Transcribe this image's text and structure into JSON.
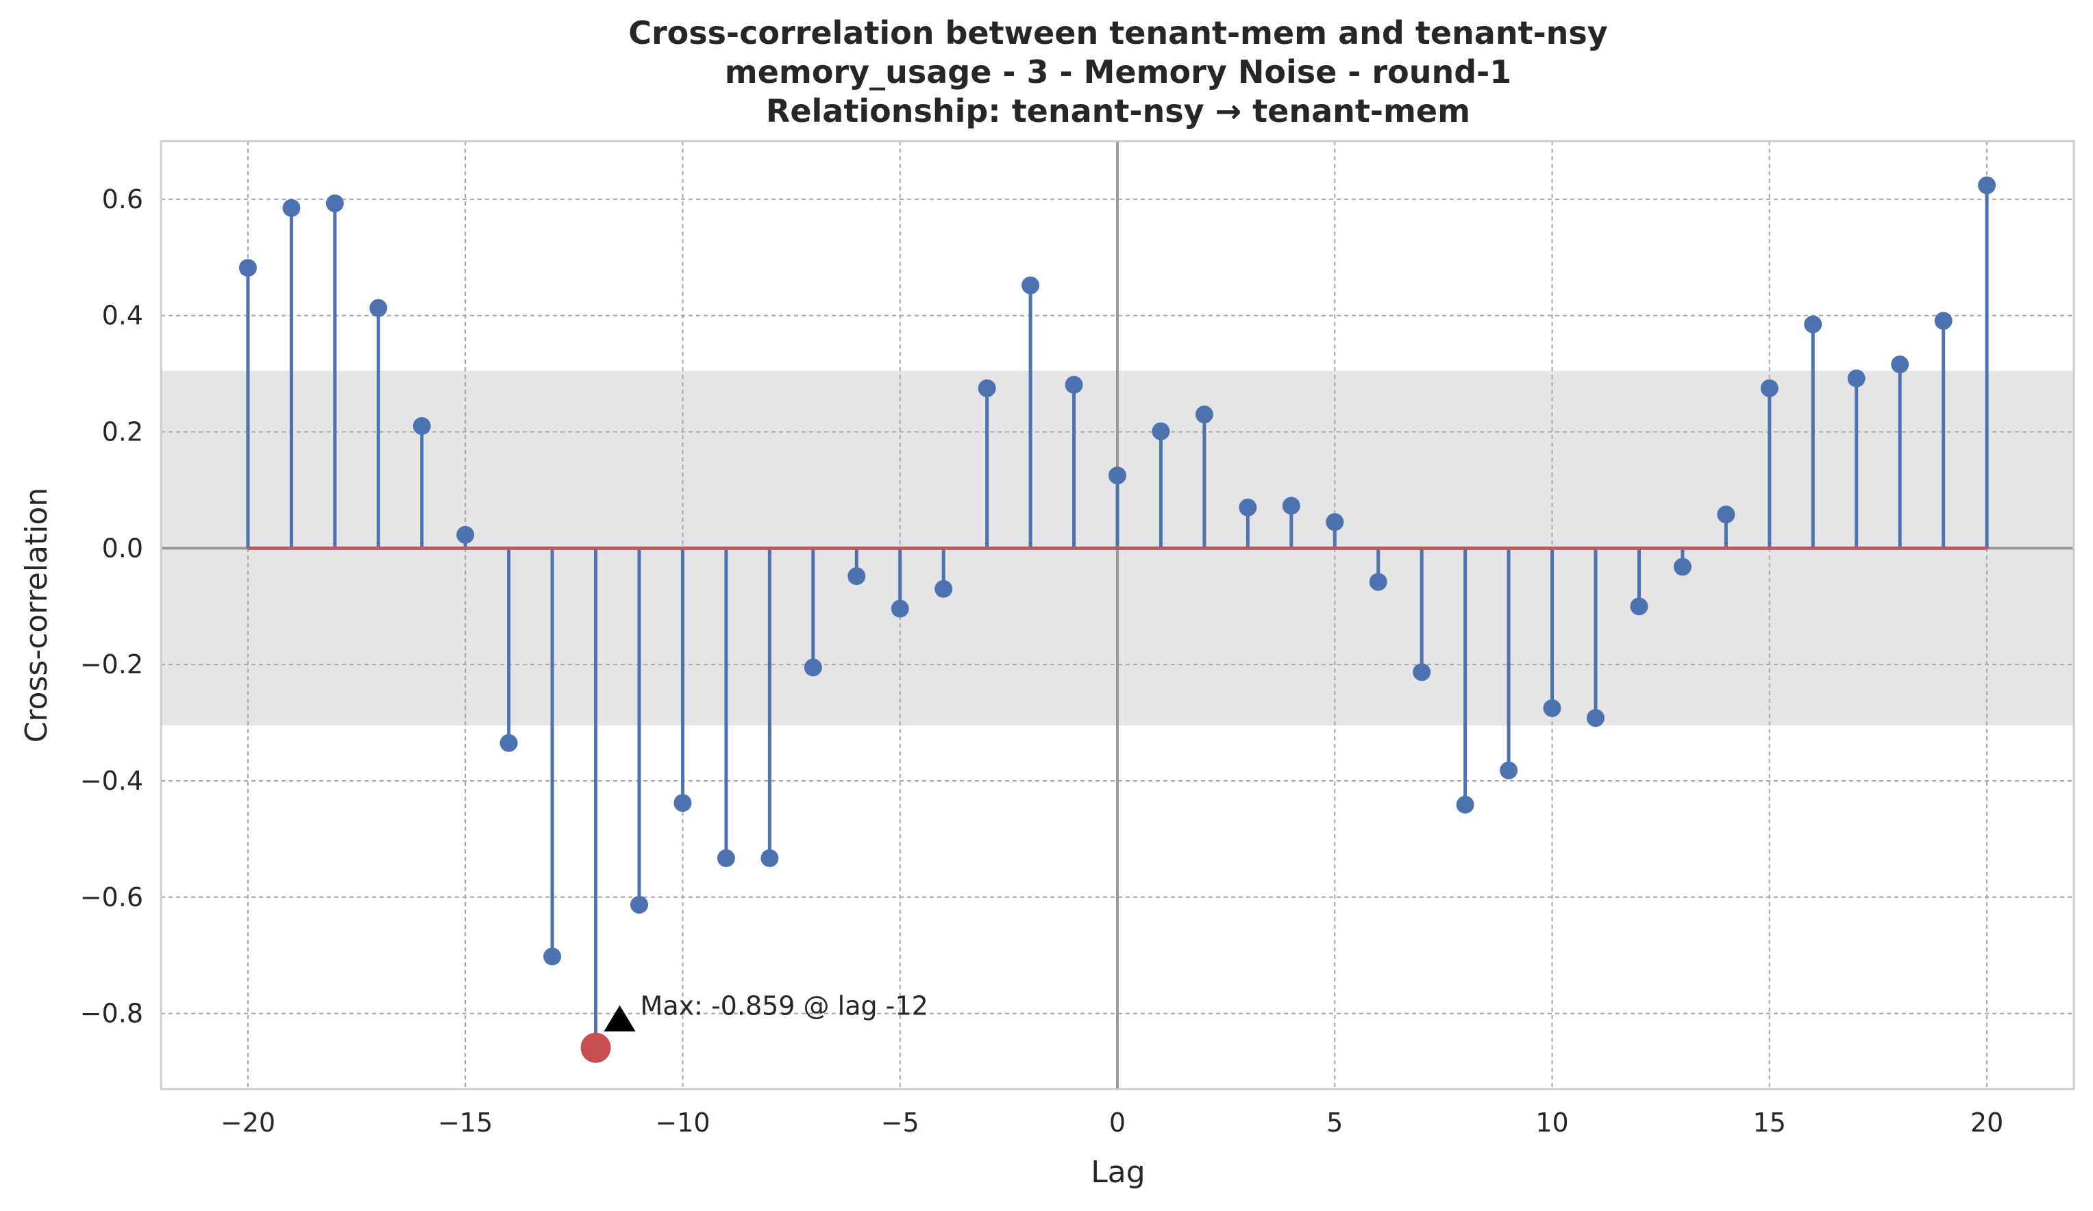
{
  "chart_data": {
    "type": "stem",
    "title_lines": [
      "Cross-correlation between tenant-mem and tenant-nsy",
      "memory_usage - 3 - Memory Noise - round-1",
      "Relationship: tenant-nsy → tenant-mem"
    ],
    "xlabel": "Lag",
    "ylabel": "Cross-correlation",
    "xlim": [
      -22,
      22
    ],
    "ylim": [
      -0.93,
      0.7
    ],
    "xticks": [
      -20,
      -15,
      -10,
      -5,
      0,
      5,
      10,
      15,
      20
    ],
    "xtick_labels": [
      "−20",
      "−15",
      "−10",
      "−5",
      "0",
      "5",
      "10",
      "15",
      "20"
    ],
    "yticks": [
      -0.8,
      -0.6,
      -0.4,
      -0.2,
      0.0,
      0.2,
      0.4,
      0.6
    ],
    "ytick_labels": [
      "−0.8",
      "−0.6",
      "−0.4",
      "−0.2",
      "0.0",
      "0.2",
      "0.4",
      "0.6"
    ],
    "grid": true,
    "confidence_band": [
      -0.305,
      0.305
    ],
    "lags": [
      -20,
      -19,
      -18,
      -17,
      -16,
      -15,
      -14,
      -13,
      -12,
      -11,
      -10,
      -9,
      -8,
      -7,
      -6,
      -5,
      -4,
      -3,
      -2,
      -1,
      0,
      1,
      2,
      3,
      4,
      5,
      6,
      7,
      8,
      9,
      10,
      11,
      12,
      13,
      14,
      15,
      16,
      17,
      18,
      19,
      20
    ],
    "values": [
      0.482,
      0.585,
      0.593,
      0.413,
      0.21,
      0.023,
      -0.335,
      -0.702,
      -0.859,
      -0.613,
      -0.438,
      -0.533,
      -0.533,
      -0.205,
      -0.048,
      -0.104,
      -0.07,
      0.275,
      0.452,
      0.281,
      0.125,
      0.201,
      0.23,
      0.07,
      0.073,
      0.045,
      -0.058,
      -0.213,
      -0.441,
      -0.382,
      -0.275,
      -0.292,
      -0.1,
      -0.032,
      0.058,
      0.275,
      0.385,
      0.292,
      0.316,
      0.391,
      0.624
    ],
    "max_point": {
      "lag": -12,
      "value": -0.859
    },
    "annotation": "Max: -0.859 @ lag -12",
    "colors": {
      "stem": "#4c72b0",
      "baseline": "#b55d60",
      "max_marker": "#c44e52",
      "band": "#e5e5e5",
      "grid": "#a6a6a6",
      "zero_line": "#999999",
      "frame": "#cccccc",
      "text": "#262626"
    }
  }
}
